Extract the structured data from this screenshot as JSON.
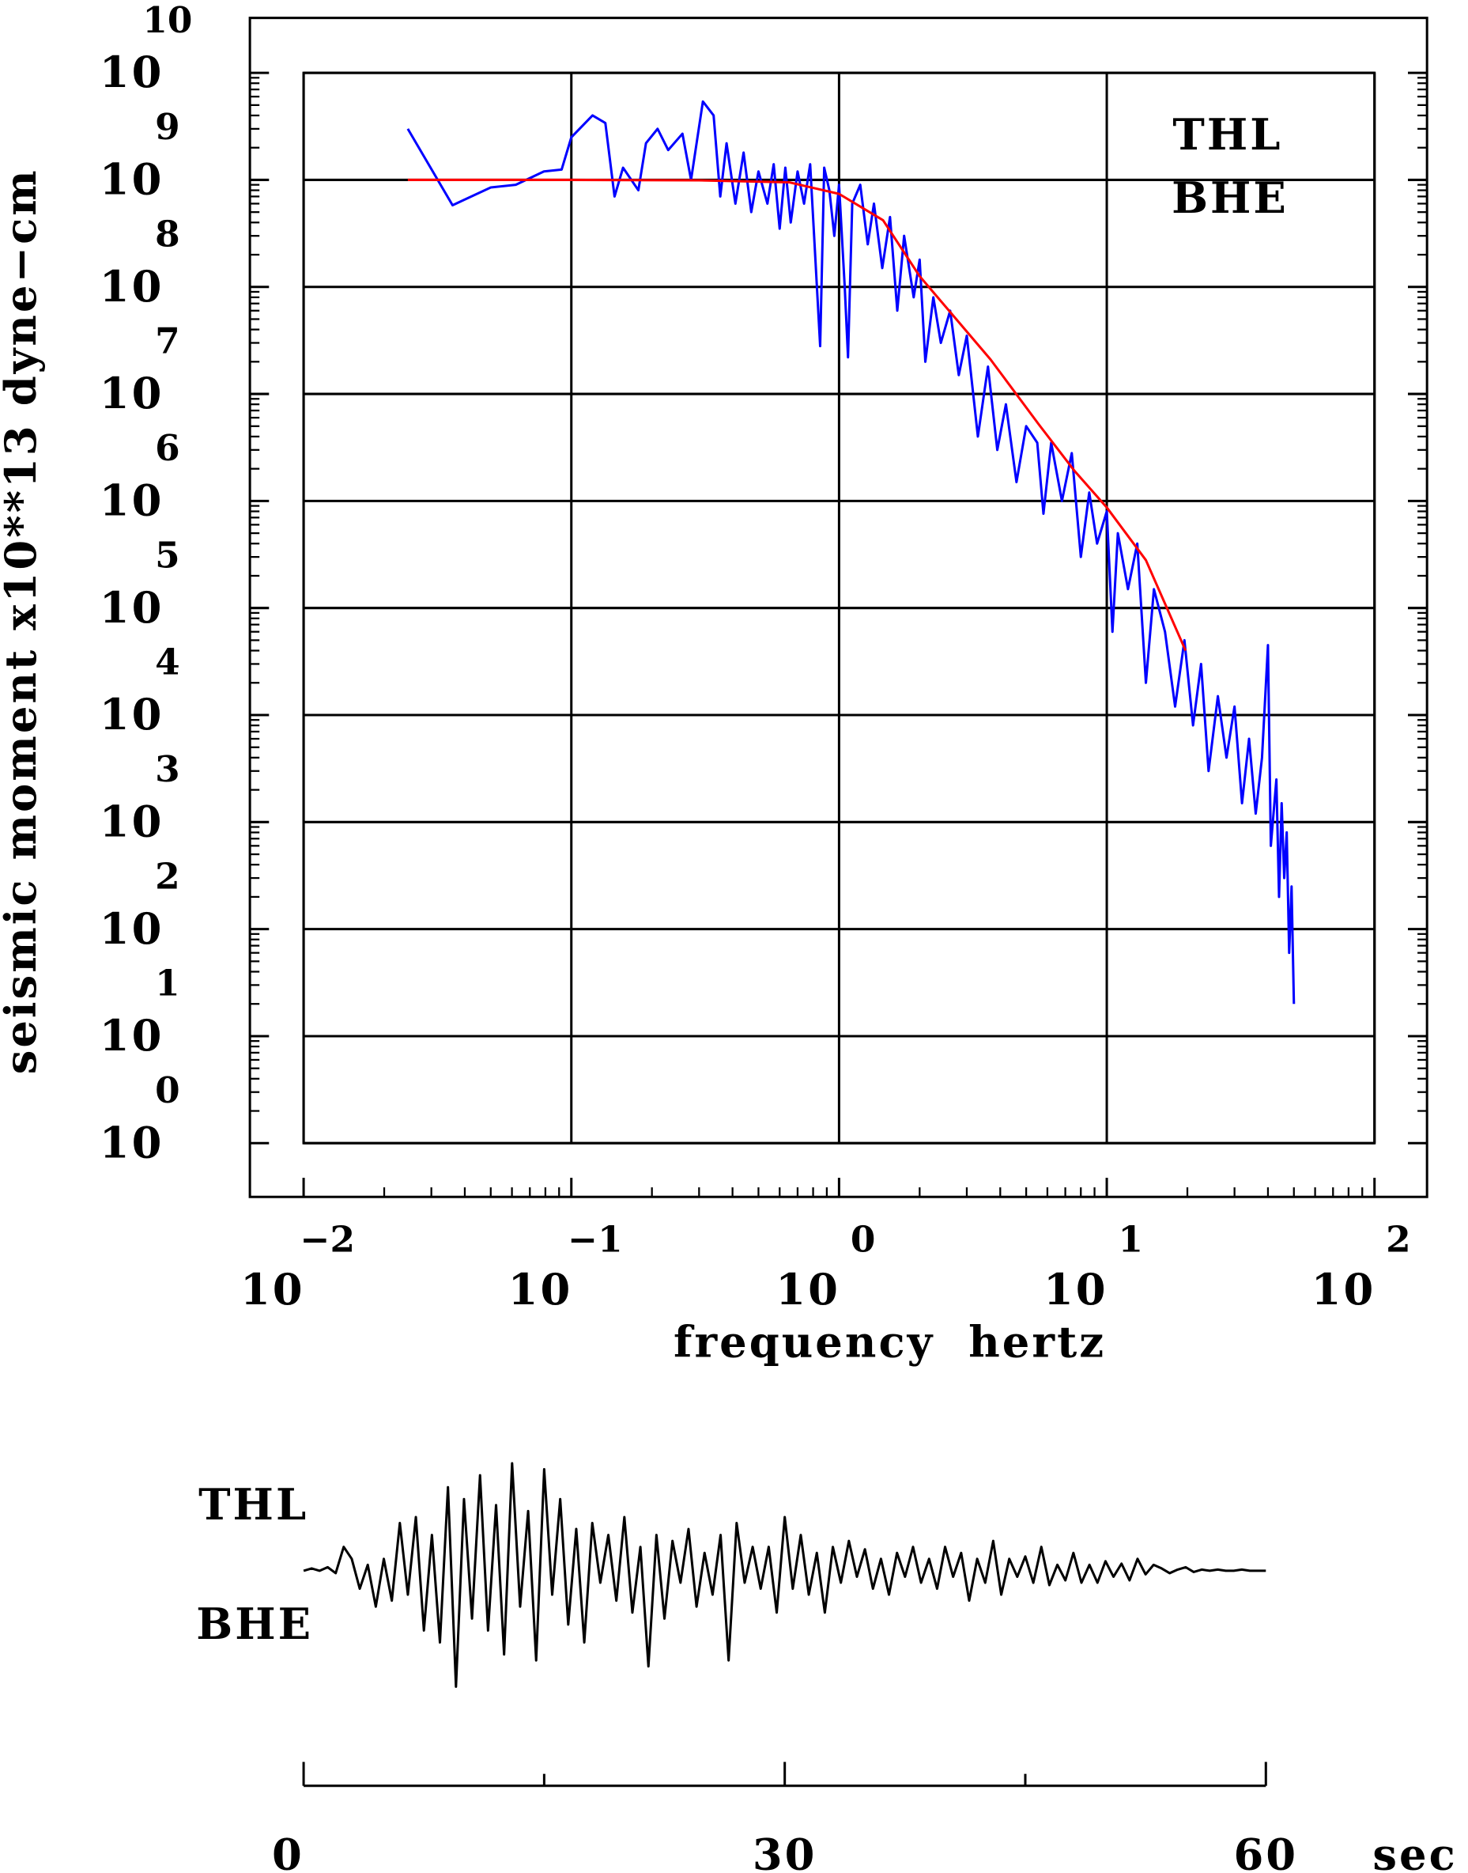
{
  "chart_data": [
    {
      "type": "line",
      "xscale": "log",
      "yscale": "log",
      "grid": true,
      "minor_ticks": true,
      "ylabel": "seismic moment x10**13 dyne−cm",
      "xlabel": "frequency hertz",
      "annotations": [
        "THL",
        "BHE"
      ],
      "xlim": [
        0.01,
        100
      ],
      "ylim": [
        1,
        10000000000
      ],
      "xticks": [
        {
          "value": 0.01,
          "label": "10",
          "exponent": "−2"
        },
        {
          "value": 0.1,
          "label": "10",
          "exponent": "−1"
        },
        {
          "value": 1,
          "label": "10",
          "exponent": "0"
        },
        {
          "value": 10,
          "label": "10",
          "exponent": "1"
        },
        {
          "value": 100,
          "label": "10",
          "exponent": "2"
        }
      ],
      "yticks": [
        {
          "value": 1,
          "label": "10",
          "exponent": "0"
        },
        {
          "value": 10,
          "label": "10",
          "exponent": "1"
        },
        {
          "value": 100,
          "label": "10",
          "exponent": "2"
        },
        {
          "value": 1000,
          "label": "10",
          "exponent": "3"
        },
        {
          "value": 10000,
          "label": "10",
          "exponent": "4"
        },
        {
          "value": 100000,
          "label": "10",
          "exponent": "5"
        },
        {
          "value": 1000000,
          "label": "10",
          "exponent": "6"
        },
        {
          "value": 10000000,
          "label": "10",
          "exponent": "7"
        },
        {
          "value": 100000000,
          "label": "10",
          "exponent": "8"
        },
        {
          "value": 1000000000,
          "label": "10",
          "exponent": "9"
        },
        {
          "value": 10000000000,
          "label": "10",
          "exponent": "10"
        }
      ],
      "series": [
        {
          "color": "#0000ff",
          "x": [
            0.0245,
            0.036,
            0.05,
            0.062,
            0.079,
            0.092,
            0.1,
            0.12,
            0.134,
            0.145,
            0.156,
            0.178,
            0.19,
            0.21,
            0.23,
            0.26,
            0.28,
            0.31,
            0.34,
            0.36,
            0.38,
            0.41,
            0.44,
            0.47,
            0.5,
            0.54,
            0.57,
            0.6,
            0.63,
            0.66,
            0.7,
            0.74,
            0.78,
            0.85,
            0.88,
            0.92,
            0.96,
            1.0,
            1.05,
            1.08,
            1.12,
            1.2,
            1.28,
            1.35,
            1.45,
            1.55,
            1.65,
            1.75,
            1.9,
            2.0,
            2.1,
            2.25,
            2.4,
            2.6,
            2.8,
            3.0,
            3.3,
            3.6,
            3.9,
            4.2,
            4.6,
            5.0,
            5.5,
            5.8,
            6.2,
            6.8,
            7.4,
            8.0,
            8.6,
            9.2,
            10,
            10.5,
            11,
            12,
            13,
            14,
            15,
            16.5,
            18,
            19.5,
            21,
            22.5,
            24,
            26,
            28,
            30,
            32,
            34,
            36,
            38,
            40,
            41,
            43,
            44,
            45,
            46,
            47,
            48,
            49,
            50
          ],
          "values": [
            3000000000,
            580000000,
            850000000,
            900000000,
            1200000000,
            1250000000,
            2500000000,
            4000000000,
            3400000000,
            700000000,
            1300000000,
            800000000,
            2200000000,
            3000000000,
            1900000000,
            2700000000,
            1000000000,
            5400000000,
            4000000000,
            700000000,
            2200000000,
            600000000,
            1800000000,
            500000000,
            1200000000,
            600000000,
            1400000000,
            350000000,
            1300000000,
            400000000,
            1200000000,
            600000000,
            1400000000,
            28000000,
            1300000000,
            800000000,
            300000000,
            900000000,
            100000000,
            22000000,
            600000000,
            900000000,
            250000000,
            600000000,
            150000000,
            450000000,
            60000000,
            300000000,
            80000000,
            180000000,
            20000000,
            80000000,
            30000000,
            60000000,
            15000000,
            35000000,
            4000000,
            18000000,
            3000000,
            8000000,
            1500000,
            5000000,
            3500000,
            760000,
            3500000,
            1000000,
            2800000,
            300000,
            1200000,
            400000,
            800000,
            60000,
            500000,
            150000,
            400000,
            20000,
            150000,
            60000,
            12000,
            50000,
            8000,
            30000,
            3000,
            15000,
            4000,
            12000,
            1500,
            6000,
            1200,
            4000,
            45000,
            600,
            2500,
            200,
            1500,
            300,
            800,
            60,
            250,
            20
          ]
        },
        {
          "color": "#ff0000",
          "x": [
            0.0245,
            0.1,
            0.3,
            0.65,
            1,
            1.46,
            2.0,
            3.68,
            5.57,
            7.59,
            10,
            14.0,
            19.7
          ],
          "values": [
            1000000000,
            1000000000,
            990000000,
            950000000,
            740000000,
            420000000,
            126000000,
            21000000,
            5200000,
            1900000,
            870000,
            280000,
            40000
          ]
        }
      ]
    },
    {
      "type": "line",
      "labels": [
        "THL",
        "BHE"
      ],
      "xlabel": "sec",
      "xlim": [
        0,
        60
      ],
      "ylim": [
        -1,
        1
      ],
      "xticks": [
        0,
        30,
        60
      ],
      "xminorticks": [
        15,
        45
      ],
      "series": [
        {
          "color": "#000000",
          "x": [
            0,
            0.5,
            1,
            1.5,
            2,
            2.5,
            3,
            3.5,
            4,
            4.5,
            5,
            5.5,
            6,
            6.5,
            7,
            7.5,
            8,
            8.5,
            9,
            9.5,
            10,
            10.5,
            11,
            11.5,
            12,
            12.5,
            13,
            13.5,
            14,
            14.5,
            15,
            15.5,
            16,
            16.5,
            17,
            17.5,
            18,
            18.5,
            19,
            19.5,
            20,
            20.5,
            21,
            21.5,
            22,
            22.5,
            23,
            23.5,
            24,
            24.5,
            25,
            25.5,
            26,
            26.5,
            27,
            27.5,
            28,
            28.5,
            29,
            29.5,
            30,
            30.5,
            31,
            31.5,
            32,
            32.5,
            33,
            33.5,
            34,
            34.5,
            35,
            35.5,
            36,
            36.5,
            37,
            37.5,
            38,
            38.5,
            39,
            39.5,
            40,
            40.5,
            41,
            41.5,
            42,
            42.5,
            43,
            43.5,
            44,
            44.5,
            45,
            45.5,
            46,
            46.5,
            47,
            47.5,
            48,
            48.5,
            49,
            49.5,
            50,
            50.5,
            51,
            51.5,
            52,
            52.5,
            53,
            53.5,
            54,
            54.5,
            55,
            55.5,
            56,
            56.5,
            57,
            57.5,
            58,
            58.5,
            59,
            59.5,
            60
          ],
          "values": [
            0,
            0.02,
            0,
            0.03,
            -0.02,
            0.2,
            0.1,
            -0.15,
            0.05,
            -0.3,
            0.1,
            -0.25,
            0.4,
            -0.2,
            0.45,
            -0.5,
            0.3,
            -0.6,
            0.7,
            -0.97,
            0.6,
            -0.4,
            0.8,
            -0.5,
            0.55,
            -0.7,
            0.9,
            -0.3,
            0.5,
            -0.75,
            0.85,
            -0.2,
            0.6,
            -0.45,
            0.35,
            -0.6,
            0.4,
            -0.1,
            0.3,
            -0.25,
            0.45,
            -0.35,
            0.2,
            -0.8,
            0.3,
            -0.4,
            0.25,
            -0.1,
            0.35,
            -0.3,
            0.15,
            -0.2,
            0.3,
            -0.75,
            0.4,
            -0.1,
            0.2,
            -0.15,
            0.2,
            -0.35,
            0.45,
            -0.15,
            0.3,
            -0.2,
            0.15,
            -0.35,
            0.2,
            -0.1,
            0.25,
            -0.05,
            0.18,
            -0.15,
            0.1,
            -0.2,
            0.15,
            -0.05,
            0.2,
            -0.1,
            0.1,
            -0.15,
            0.2,
            -0.05,
            0.15,
            -0.25,
            0.1,
            -0.1,
            0.25,
            -0.2,
            0.1,
            -0.05,
            0.12,
            -0.1,
            0.2,
            -0.12,
            0.05,
            -0.08,
            0.15,
            -0.1,
            0.05,
            -0.1,
            0.08,
            -0.05,
            0.06,
            -0.08,
            0.1,
            -0.03,
            0.05,
            0.02,
            -0.02,
            0.01,
            0.03,
            -0.01,
            0.01,
            0,
            0.01,
            0,
            0,
            0.01,
            0,
            0,
            0
          ]
        }
      ]
    }
  ]
}
